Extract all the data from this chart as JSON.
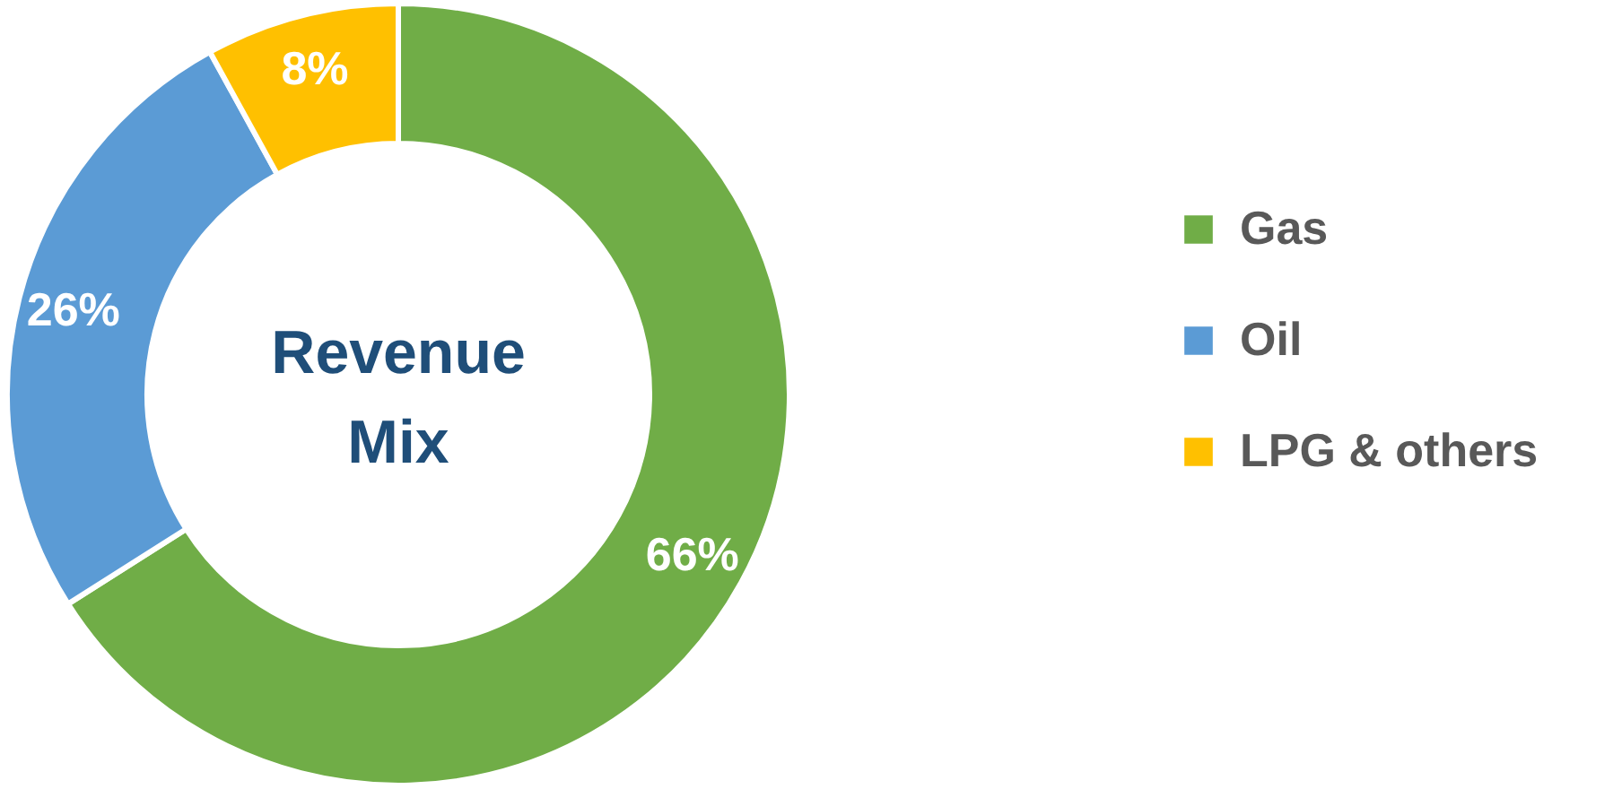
{
  "chart_data": {
    "type": "donut",
    "title": "Revenue Mix",
    "categories": [
      "Gas",
      "Oil",
      "LPG & others"
    ],
    "values": [
      66,
      26,
      8
    ],
    "colors": [
      "#70ad47",
      "#5b9bd5",
      "#ffc000"
    ],
    "value_labels": [
      "66%",
      "26%",
      "8%"
    ],
    "legend": "right"
  }
}
